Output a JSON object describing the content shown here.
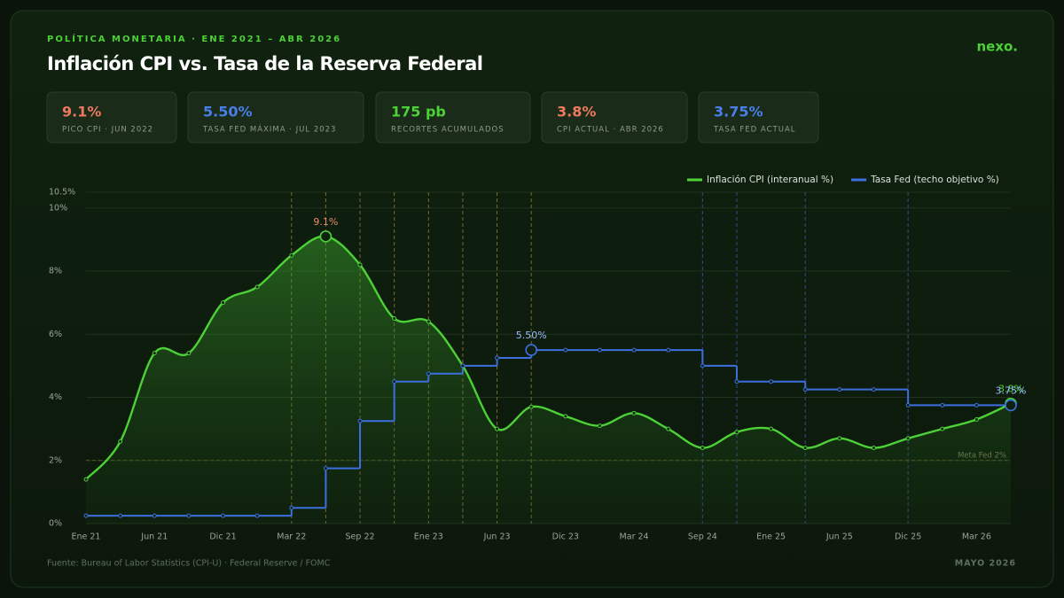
{
  "header": {
    "kicker": "POLÍTICA MONETARIA  ·  ENE 2021 – ABR 2026",
    "title": "Inflación CPI vs. Tasa de la Reserva Federal",
    "logo": "nexo."
  },
  "kpis": [
    {
      "value": "9.1%",
      "label": "PICO CPI · JUN 2022",
      "color": "#ee7a5e"
    },
    {
      "value": "5.50%",
      "label": "TASA FED MÁXIMA · JUL 2023",
      "color": "#4a7fea"
    },
    {
      "value": "175 pb",
      "label": "RECORTES ACUMULADOS",
      "color": "#4cd137"
    },
    {
      "value": "3.8%",
      "label": "CPI ACTUAL · ABR 2026",
      "color": "#ee7a5e"
    },
    {
      "value": "3.75%",
      "label": "TASA FED ACTUAL",
      "color": "#4a7fea"
    }
  ],
  "chart_data": {
    "type": "line",
    "categories": [
      "Ene 21",
      null,
      "Jun 21",
      null,
      "Dic 21",
      null,
      "Mar 22",
      null,
      "Sep 22",
      null,
      "Ene 23",
      null,
      "Jun 23",
      null,
      "Dic 23",
      null,
      "Mar 24",
      null,
      "Sep 24",
      null,
      "Ene 25",
      null,
      "Jun 25",
      null,
      "Dic 25",
      null,
      "Mar 26",
      null
    ],
    "series": [
      {
        "name": "Inflación CPI (interanual %)",
        "color": "#4cd137",
        "values": [
          1.4,
          2.6,
          5.4,
          5.4,
          7.0,
          7.5,
          8.5,
          9.1,
          8.2,
          6.5,
          6.4,
          5.0,
          3.0,
          3.7,
          3.4,
          3.1,
          3.5,
          3.0,
          2.4,
          2.9,
          3.0,
          2.4,
          2.7,
          2.4,
          2.7,
          3.0,
          3.3,
          3.8
        ],
        "value_labels": [
          null,
          null,
          null,
          null,
          null,
          null,
          null,
          "9.1%",
          null,
          null,
          null,
          null,
          null,
          null,
          null,
          null,
          null,
          null,
          null,
          null,
          null,
          null,
          null,
          null,
          null,
          null,
          null,
          "3.8%"
        ]
      },
      {
        "name": "Tasa Fed (techo objetivo %)",
        "color": "#3d6fe0",
        "values": [
          0.25,
          0.25,
          0.25,
          0.25,
          0.25,
          0.25,
          0.5,
          1.75,
          3.25,
          4.5,
          4.75,
          5.0,
          5.25,
          5.5,
          5.5,
          5.5,
          5.5,
          5.5,
          5.0,
          4.5,
          4.5,
          4.25,
          4.25,
          4.25,
          3.75,
          3.75,
          3.75,
          3.75
        ],
        "value_labels": [
          null,
          null,
          null,
          null,
          null,
          null,
          null,
          null,
          null,
          null,
          null,
          null,
          null,
          "5.50%",
          null,
          null,
          null,
          null,
          null,
          null,
          null,
          null,
          null,
          null,
          null,
          null,
          null,
          "3.75%"
        ]
      }
    ],
    "ylim": [
      0,
      10.5
    ],
    "yticks": [
      {
        "value": 0,
        "label": "0%"
      },
      {
        "value": 2,
        "label": "2%"
      },
      {
        "value": 4,
        "label": "4%"
      },
      {
        "value": 6,
        "label": "6%"
      },
      {
        "value": 8,
        "label": "8%"
      },
      {
        "value": 10,
        "label": "10%"
      },
      {
        "value": 10.5,
        "label": "10.5%"
      }
    ],
    "grid": true,
    "legend": "top-right",
    "reference_line": {
      "value": 2,
      "label": "Meta Fed 2%"
    }
  },
  "footer": {
    "source": "Fuente: Bureau of Labor Statistics (CPI-U) · Federal Reserve / FOMC",
    "date": "MAYO 2026"
  }
}
